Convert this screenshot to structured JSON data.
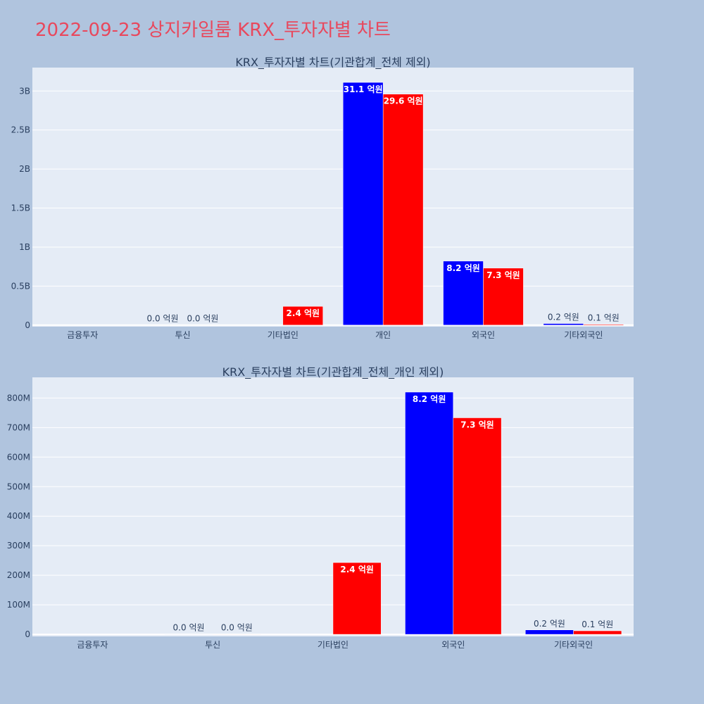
{
  "page_title": "2022-09-23 상지카일룸 KRX_투자자별 차트",
  "colors": {
    "background": "#b0c4de",
    "title": "#e8485d",
    "plot_bg": "#e5ecf6",
    "series_a": "#0000ff",
    "series_b": "#ff0000",
    "text": "#2a3f5f"
  },
  "chart_data": [
    {
      "type": "bar",
      "title": "KRX_투자자별 차트(기관합계_전체 제외)",
      "categories": [
        "금융투자",
        "투신",
        "기타법인",
        "개인",
        "외국인",
        "기타외국인"
      ],
      "ylim": [
        -20000000,
        3300000000
      ],
      "y_ticks": [
        0,
        500000000,
        1000000000,
        1500000000,
        2000000000,
        2500000000,
        3000000000
      ],
      "y_tick_labels": [
        "0",
        "0.5B",
        "1B",
        "1.5B",
        "2B",
        "2.5B",
        "3B"
      ],
      "series": [
        {
          "color": "#0000ff",
          "values": [
            0,
            2000000,
            0,
            3110000000,
            820000000,
            20000000
          ],
          "labels": [
            "",
            "0.0 억원",
            "",
            "31.1 억원",
            "8.2 억원",
            "0.2 억원"
          ]
        },
        {
          "color": "#ff0000",
          "values": [
            0,
            2000000,
            240000000,
            2960000000,
            730000000,
            10000000
          ],
          "labels": [
            "",
            "0.0 억원",
            "2.4 억원",
            "29.6 억원",
            "7.3 억원",
            "0.1 억원"
          ]
        }
      ]
    },
    {
      "type": "bar",
      "title": "KRX_투자자별 차트(기관합계_전체_개인 제외)",
      "categories": [
        "금융투자",
        "투신",
        "기타법인",
        "외국인",
        "기타외국인"
      ],
      "ylim": [
        -7000000,
        870000000
      ],
      "y_ticks": [
        0,
        100000000,
        200000000,
        300000000,
        400000000,
        500000000,
        600000000,
        700000000,
        800000000
      ],
      "y_tick_labels": [
        "0",
        "100M",
        "200M",
        "300M",
        "400M",
        "500M",
        "600M",
        "700M",
        "800M"
      ],
      "series": [
        {
          "color": "#0000ff",
          "values": [
            0,
            1000000,
            0,
            820000000,
            15000000
          ],
          "labels": [
            "",
            "0.0 억원",
            "",
            "8.2 억원",
            "0.2 억원"
          ]
        },
        {
          "color": "#ff0000",
          "values": [
            0,
            1000000,
            243000000,
            733000000,
            12000000
          ],
          "labels": [
            "",
            "0.0 억원",
            "2.4 억원",
            "7.3 억원",
            "0.1 억원"
          ]
        }
      ]
    }
  ]
}
